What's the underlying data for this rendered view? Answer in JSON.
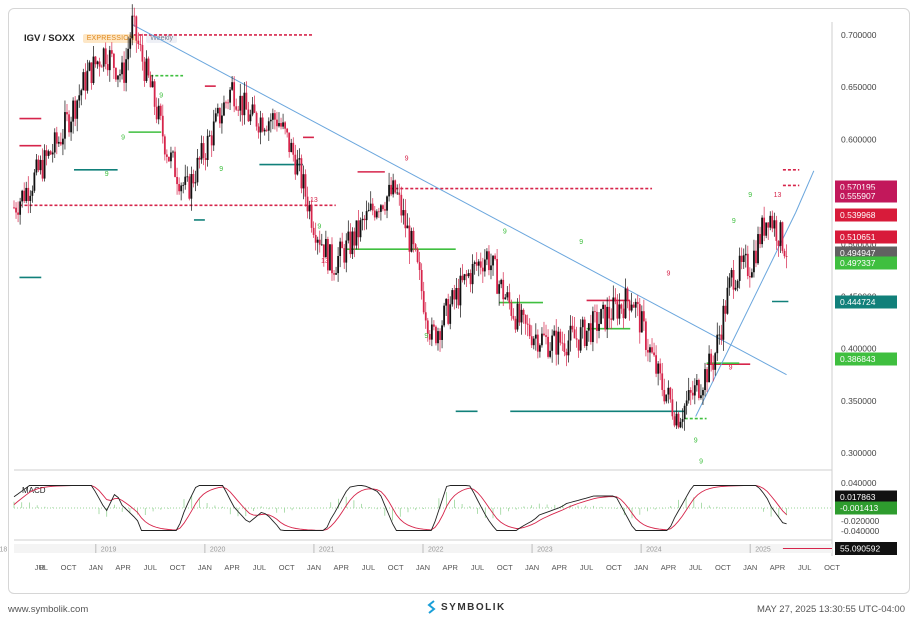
{
  "header": {
    "symbol": "IGV / SOXX",
    "mode_badge": "EXPRESSION",
    "interval_badge": "Weekly"
  },
  "footer": {
    "website": "www.symbolik.com",
    "brand": "SYMBOLIK",
    "timestamp": "MAY 27, 2025 13:30:55 UTC-04:00"
  },
  "price_axis_ticks": [
    "0.700000",
    "0.650000",
    "0.600000",
    "0.550000",
    "0.500000",
    "0.450000",
    "0.400000",
    "0.350000",
    "0.300000"
  ],
  "price_labels": [
    {
      "text": "0.570195",
      "color": "#c2185b"
    },
    {
      "text": "0.555907",
      "color": "#c2185b"
    },
    {
      "text": "0.539968",
      "color": "#d81b3a"
    },
    {
      "text": "0.510651",
      "color": "#d81b3a"
    },
    {
      "text": "0.494947",
      "color": "#616161"
    },
    {
      "text": "0.49?337",
      "color": "#3fbf3f"
    },
    {
      "text": "0.444724",
      "color": "#11807a"
    },
    {
      "text": "0.386843",
      "color": "#3fbf3f"
    }
  ],
  "macd": {
    "title": "MACD",
    "ticks": [
      "0.040000",
      "0.020000",
      "-0.020000",
      "-0.040000"
    ],
    "labels": [
      {
        "text": "0.017863",
        "color": "#111111"
      },
      {
        "text": "-0.001413",
        "color": "#2e9c2e"
      }
    ]
  },
  "nav_label": {
    "text": "55.090592",
    "color": "#111111"
  },
  "nav_years": [
    "2018",
    "2019",
    "2020",
    "2021",
    "2022",
    "2023",
    "2024",
    "2025"
  ],
  "x_ticks": [
    "R",
    "JUL",
    "OCT",
    "JAN",
    "APR",
    "JUL",
    "OCT",
    "JAN",
    "APR",
    "JUL",
    "OCT",
    "JAN",
    "APR",
    "JUL",
    "OCT",
    "JAN",
    "APR",
    "JUL",
    "OCT",
    "JAN",
    "APR",
    "JUL",
    "OCT",
    "JAN",
    "APR",
    "JUL",
    "OCT",
    "JAN",
    "APR",
    "JUL",
    "OCT"
  ],
  "colors": {
    "up": "#111111",
    "down": "#d6254b",
    "trend": "#6aa6dd",
    "resistance": "#d6254b",
    "support": "#3fbf3f",
    "teal": "#11807a",
    "macd_line": "#222222",
    "signal_line": "#d6254b"
  },
  "chart_data": {
    "type": "candlestick",
    "title": "IGV / SOXX",
    "interval": "Weekly",
    "y_range": [
      0.28,
      0.72
    ],
    "x_start": "2018-04",
    "x_end": "2025-10",
    "close_path": [
      {
        "t": "2018-04",
        "v": 0.535
      },
      {
        "t": "2018-06",
        "v": 0.56
      },
      {
        "t": "2018-09",
        "v": 0.6
      },
      {
        "t": "2018-12",
        "v": 0.66
      },
      {
        "t": "2019-02",
        "v": 0.685
      },
      {
        "t": "2019-04",
        "v": 0.66
      },
      {
        "t": "2019-05",
        "v": 0.71
      },
      {
        "t": "2019-07",
        "v": 0.65
      },
      {
        "t": "2019-09",
        "v": 0.585
      },
      {
        "t": "2019-11",
        "v": 0.55
      },
      {
        "t": "2020-02",
        "v": 0.61
      },
      {
        "t": "2020-04",
        "v": 0.65
      },
      {
        "t": "2020-06",
        "v": 0.62
      },
      {
        "t": "2020-09",
        "v": 0.62
      },
      {
        "t": "2020-11",
        "v": 0.58
      },
      {
        "t": "2021-01",
        "v": 0.52
      },
      {
        "t": "2021-03",
        "v": 0.48
      },
      {
        "t": "2021-05",
        "v": 0.5
      },
      {
        "t": "2021-08",
        "v": 0.54
      },
      {
        "t": "2021-10",
        "v": 0.55
      },
      {
        "t": "2021-12",
        "v": 0.49
      },
      {
        "t": "2022-02",
        "v": 0.41
      },
      {
        "t": "2022-04",
        "v": 0.44
      },
      {
        "t": "2022-06",
        "v": 0.47
      },
      {
        "t": "2022-08",
        "v": 0.49
      },
      {
        "t": "2022-10",
        "v": 0.45
      },
      {
        "t": "2022-12",
        "v": 0.42
      },
      {
        "t": "2023-03",
        "v": 0.405
      },
      {
        "t": "2023-06",
        "v": 0.41
      },
      {
        "t": "2023-09",
        "v": 0.43
      },
      {
        "t": "2023-12",
        "v": 0.45
      },
      {
        "t": "2024-03",
        "v": 0.37
      },
      {
        "t": "2024-05",
        "v": 0.335
      },
      {
        "t": "2024-07",
        "v": 0.36
      },
      {
        "t": "2024-09",
        "v": 0.39
      },
      {
        "t": "2024-11",
        "v": 0.47
      },
      {
        "t": "2025-01",
        "v": 0.48
      },
      {
        "t": "2025-03",
        "v": 0.53
      },
      {
        "t": "2025-05",
        "v": 0.495
      }
    ],
    "trendlines": [
      {
        "name": "descending",
        "from": {
          "t": "2019-05",
          "v": 0.71
        },
        "to": {
          "t": "2025-05",
          "v": 0.375
        }
      },
      {
        "name": "ascending",
        "from": {
          "t": "2024-07",
          "v": 0.335
        },
        "to": {
          "t": "2025-06",
          "v": 0.53
        }
      }
    ],
    "horizontal_levels": [
      0.570195,
      0.555907,
      0.539968,
      0.510651,
      0.494947,
      0.444724,
      0.386843
    ],
    "macd": {
      "range": [
        -0.05,
        0.05
      ],
      "macd": 0.017863,
      "histogram": -0.001413
    }
  }
}
